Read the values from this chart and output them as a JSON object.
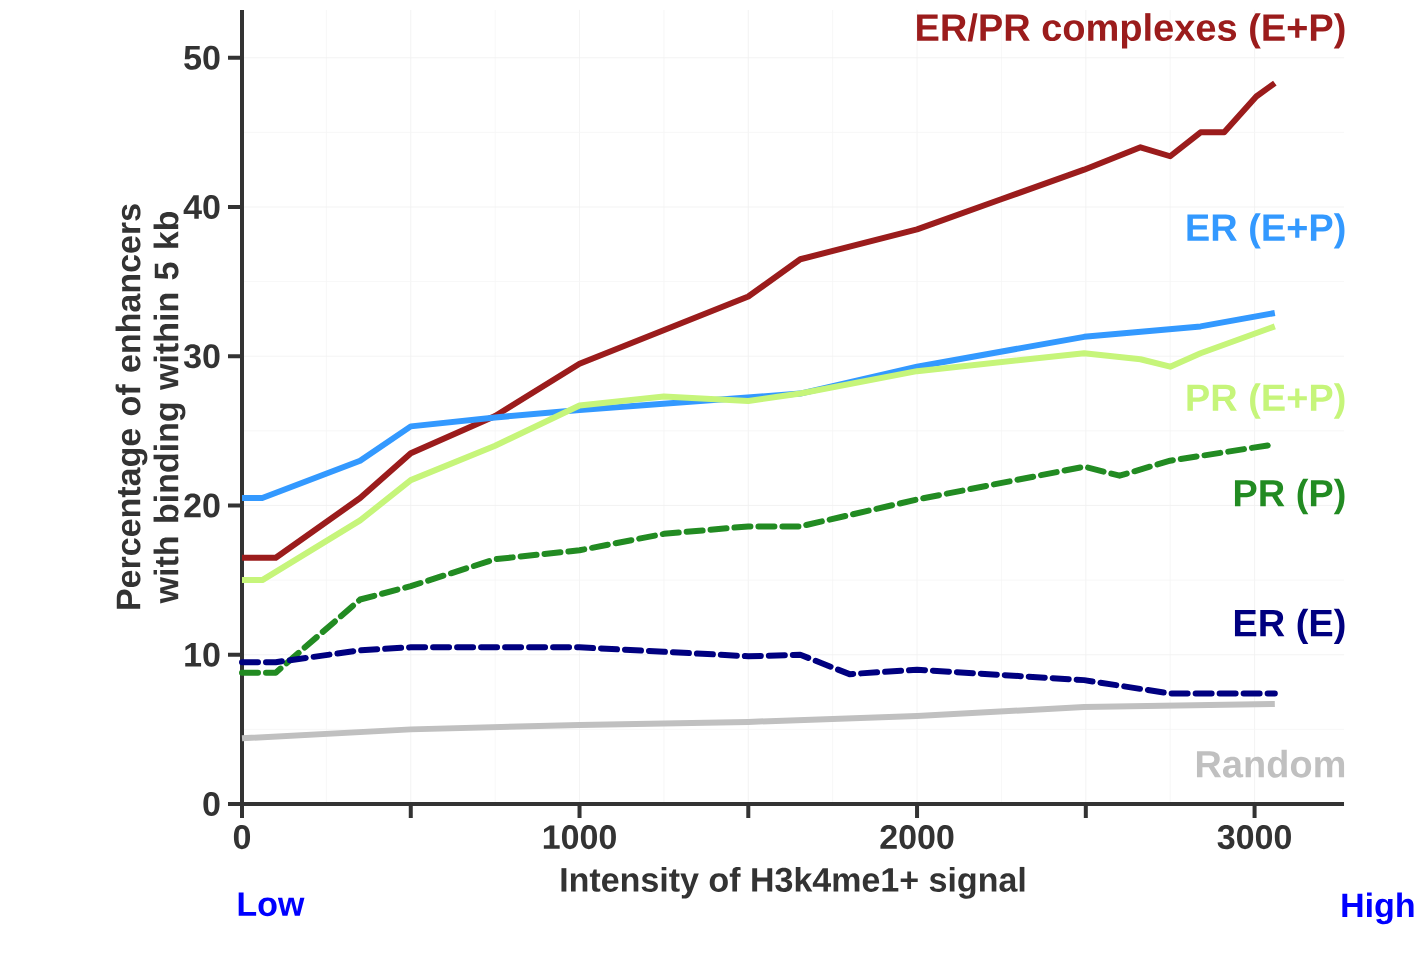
{
  "chart_data": {
    "type": "line",
    "xlabel": "Intensity of H3k4me1+ signal",
    "ylabel": "Percentage of enhancers with binding within 5 kb",
    "annotations": [
      "Low",
      "High"
    ],
    "xlim": [
      0,
      3265
    ],
    "ylim": [
      0,
      53.2
    ],
    "xticks": [
      0,
      {
        "value": 500,
        "label": null
      },
      1000,
      {
        "value": 1500,
        "label": null
      },
      2000,
      {
        "value": 2500,
        "label": null
      },
      3000
    ],
    "yticks": [
      0,
      10,
      20,
      30,
      40,
      50
    ],
    "grid": true,
    "marker": "none",
    "series": [
      {
        "name": "ER/PR complexes (E+P)",
        "color": "#9b1c1c",
        "line_style": "solid",
        "x": [
          0,
          100,
          350,
          500,
          750,
          1000,
          1500,
          1654,
          2000,
          2247,
          2495,
          2662,
          2750,
          2840,
          2910,
          3005,
          3060
        ],
        "values": [
          16.5,
          16.5,
          20.5,
          23.5,
          26,
          29.5,
          34,
          36.5,
          38.5,
          40.5,
          42.5,
          44,
          43.4,
          45,
          45,
          47.4,
          48.3
        ]
      },
      {
        "name": "ER (E+P)",
        "color": "#3399ff",
        "line_style": "solid",
        "x": [
          0,
          60,
          350,
          500,
          750,
          1000,
          1654,
          2000,
          2495,
          2840,
          3060
        ],
        "values": [
          20.5,
          20.5,
          23,
          25.3,
          25.9,
          26.4,
          27.5,
          29.3,
          31.3,
          32,
          32.9
        ]
      },
      {
        "name": "PR (E+P)",
        "color": "#c6f57a",
        "line_style": "solid",
        "x": [
          0,
          60,
          350,
          500,
          750,
          1000,
          1250,
          1500,
          1654,
          2000,
          2495,
          2662,
          2750,
          2840,
          3060
        ],
        "values": [
          15,
          15,
          19,
          21.7,
          24,
          26.7,
          27.3,
          27,
          27.5,
          29,
          30.2,
          29.8,
          29.3,
          30.2,
          32
        ]
      },
      {
        "name": "PR (P)",
        "color": "#228b22",
        "line_style": "dashed",
        "x": [
          0,
          100,
          350,
          500,
          750,
          1000,
          1250,
          1500,
          1654,
          2000,
          2495,
          2600,
          2750,
          3060
        ],
        "values": [
          8.8,
          8.8,
          13.7,
          14.6,
          16.4,
          17,
          18.1,
          18.6,
          18.6,
          20.4,
          22.6,
          22,
          23,
          24.1
        ]
      },
      {
        "name": "ER (E)",
        "color": "#000080",
        "line_style": "dashed",
        "x": [
          0,
          100,
          350,
          500,
          1000,
          1250,
          1500,
          1654,
          1800,
          2000,
          2495,
          2750,
          3060
        ],
        "values": [
          9.5,
          9.5,
          10.3,
          10.5,
          10.5,
          10.2,
          9.9,
          10,
          8.7,
          9,
          8.3,
          7.4,
          7.4
        ]
      },
      {
        "name": "Random",
        "color": "#c0c0c0",
        "line_style": "solid",
        "x": [
          0,
          500,
          1000,
          1500,
          2000,
          2495,
          3060
        ],
        "values": [
          4.4,
          5,
          5.3,
          5.5,
          5.9,
          6.5,
          6.7
        ]
      }
    ]
  }
}
